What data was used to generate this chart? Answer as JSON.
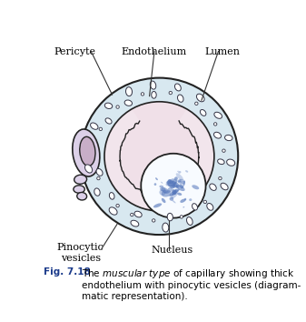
{
  "labels": {
    "pericyte": "Pericyte",
    "endothelium": "Endothelium",
    "lumen": "Lumen",
    "pinocytic": "Pinocytic\nvesicles",
    "nucleus": "Nucleus"
  },
  "caption_bold": "Fig. 7.18",
  "caption_rest": "The \\textit{muscular type} of capillary showing thick endothelium with pinocytic vesicles (diagrammatic representation).",
  "colors": {
    "background": "#ffffff",
    "endothelium_fill": "#d8e8f0",
    "lumen_fill": "#f0e0e8",
    "lumen_light": "#f5eaf0",
    "nucleus_fill": "#e8f0ff",
    "nucleus_white": "#f8fbff",
    "pericyte_nucleus_fill": "#c8aec8",
    "pericyte_body_fill": "#dcd0e8",
    "vesicle_stroke": "#333344",
    "label_color": "#000000",
    "caption_color": "#1a3a8a",
    "line_color": "#333333",
    "blue_spots": "#5577bb",
    "stroke": "#222222"
  }
}
